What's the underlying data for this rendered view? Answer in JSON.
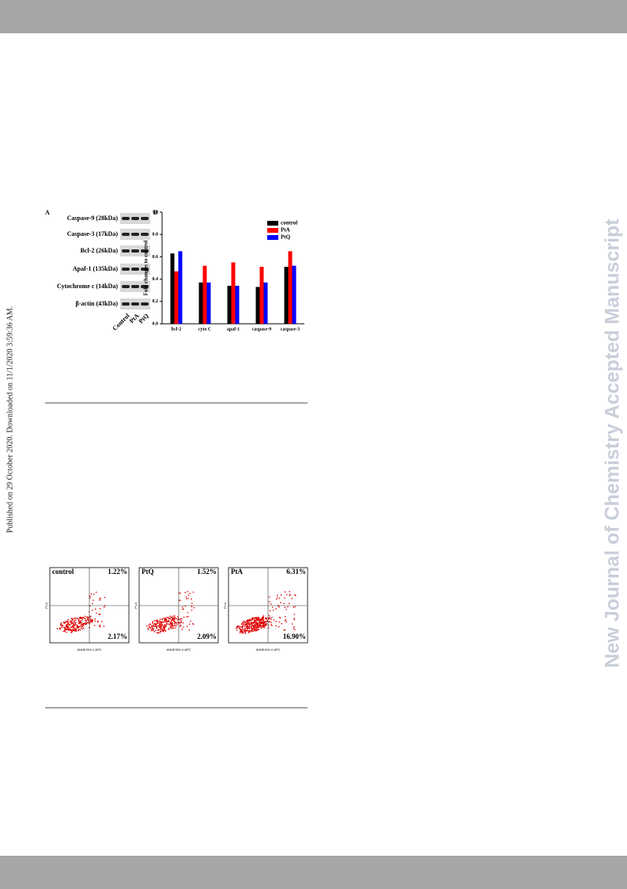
{
  "side_banner": "New Journal of Chemistry Accepted Manuscript",
  "published_note": "Published on 29 October 2020. Downloaded on 11/1/2020 3:59:36 AM.",
  "figure1": {
    "panel_a_label": "A",
    "panel_b_label": "B",
    "blot_labels": [
      "Caspase-9 (28kDa)",
      "Caspase-3 (17kDa)",
      "Bcl-2 (26kDa)",
      "Apaf-1 (135kDa)",
      "Cytochrome c (14kDa)",
      "β-actin (43kDa)"
    ],
    "lanes": [
      "Control",
      "PtA",
      "PtQ"
    ]
  },
  "chart_data": {
    "type": "bar",
    "y_label": "Fold changes to control",
    "categories": [
      "bcl-2",
      "cyto C",
      "apaf-1",
      "caspase-9",
      "caspase-3"
    ],
    "series": [
      {
        "name": "control",
        "color": "#000000",
        "values": [
          0.63,
          0.37,
          0.34,
          0.33,
          0.51
        ]
      },
      {
        "name": "PtA",
        "color": "#ff0000",
        "values": [
          0.47,
          0.52,
          0.55,
          0.51,
          0.65
        ]
      },
      {
        "name": "PtQ",
        "color": "#0000ff",
        "values": [
          0.65,
          0.37,
          0.34,
          0.37,
          0.52
        ]
      }
    ],
    "ylim": [
      0,
      1
    ],
    "yticks": [
      {
        "value": 0,
        "label": "0.0"
      },
      0.2,
      0.4,
      0.6,
      0.8,
      {
        "value": 1,
        "label": "1.0"
      }
    ],
    "legend": "upper right"
  },
  "figure2": {
    "panels": [
      {
        "label": "control",
        "upper_right": "1.22%",
        "lower_right": "2.17%",
        "x_label": "ANNEXIN-V-APC",
        "y_label": "PI-A"
      },
      {
        "label": "PtQ",
        "upper_right": "1.52%",
        "lower_right": "2.09%",
        "x_label": "ANNEXIN-V-APC",
        "y_label": "PI-A"
      },
      {
        "label": "PtA",
        "upper_right": "6.31%",
        "lower_right": "16.90%",
        "x_label": "ANNEXIN-V-APC",
        "y_label": "PI-A"
      }
    ]
  }
}
